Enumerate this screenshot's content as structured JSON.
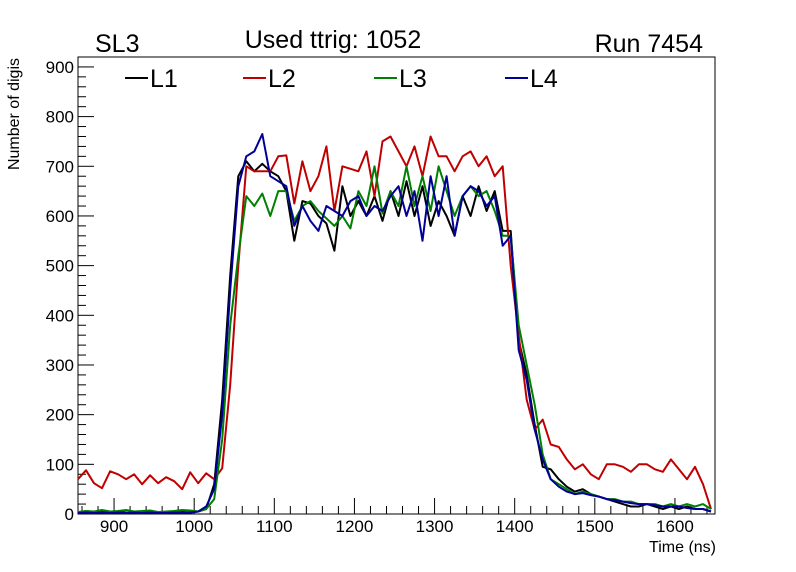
{
  "header": {
    "left": "SL3",
    "center": "Used ttrig: 1052",
    "right": "Run 7454"
  },
  "chart_data": {
    "type": "line",
    "xlabel": "Time (ns)",
    "ylabel": "Number of digis",
    "xlim": [
      855,
      1650
    ],
    "ylim": [
      0,
      920
    ],
    "xticks": [
      900,
      1000,
      1100,
      1200,
      1300,
      1400,
      1500,
      1600
    ],
    "yticks": [
      0,
      100,
      200,
      300,
      400,
      500,
      600,
      700,
      800,
      900
    ],
    "grid": false,
    "legend_position": "top",
    "x": [
      855,
      865,
      875,
      885,
      895,
      905,
      915,
      925,
      935,
      945,
      955,
      965,
      975,
      985,
      995,
      1005,
      1015,
      1025,
      1035,
      1045,
      1055,
      1065,
      1075,
      1085,
      1095,
      1105,
      1115,
      1125,
      1135,
      1145,
      1155,
      1165,
      1175,
      1185,
      1195,
      1205,
      1215,
      1225,
      1235,
      1245,
      1255,
      1265,
      1275,
      1285,
      1295,
      1305,
      1315,
      1325,
      1335,
      1345,
      1355,
      1365,
      1375,
      1385,
      1395,
      1405,
      1415,
      1425,
      1435,
      1445,
      1455,
      1465,
      1475,
      1485,
      1495,
      1505,
      1515,
      1525,
      1535,
      1545,
      1555,
      1565,
      1575,
      1585,
      1595,
      1605,
      1615,
      1625,
      1635,
      1645
    ],
    "series": [
      {
        "name": "L1",
        "color": "#000000",
        "values": [
          2,
          3,
          2,
          4,
          3,
          5,
          3,
          2,
          4,
          3,
          2,
          3,
          2,
          4,
          3,
          5,
          10,
          60,
          230,
          480,
          680,
          710,
          690,
          705,
          690,
          680,
          650,
          550,
          630,
          625,
          600,
          585,
          530,
          660,
          600,
          630,
          600,
          640,
          590,
          650,
          600,
          670,
          600,
          660,
          580,
          630,
          600,
          560,
          640,
          600,
          660,
          610,
          650,
          570,
          570,
          350,
          280,
          180,
          95,
          90,
          70,
          55,
          45,
          50,
          40,
          35,
          30,
          25,
          20,
          15,
          15,
          20,
          15,
          10,
          15,
          10,
          15,
          10,
          10,
          5
        ]
      },
      {
        "name": "L2",
        "color": "#c00000",
        "values": [
          70,
          88,
          62,
          52,
          86,
          80,
          70,
          80,
          60,
          78,
          62,
          74,
          66,
          50,
          84,
          62,
          82,
          70,
          92,
          260,
          500,
          700,
          690,
          690,
          690,
          720,
          722,
          625,
          710,
          650,
          680,
          740,
          610,
          700,
          695,
          690,
          730,
          640,
          750,
          760,
          730,
          700,
          740,
          680,
          760,
          720,
          720,
          690,
          720,
          730,
          700,
          720,
          680,
          700,
          500,
          360,
          230,
          170,
          190,
          140,
          135,
          110,
          90,
          100,
          80,
          70,
          100,
          100,
          95,
          85,
          100,
          100,
          90,
          85,
          110,
          90,
          70,
          95,
          60,
          10
        ]
      },
      {
        "name": "L3",
        "color": "#008000",
        "values": [
          4,
          6,
          5,
          8,
          5,
          6,
          8,
          5,
          6,
          7,
          4,
          5,
          6,
          8,
          7,
          5,
          10,
          30,
          150,
          380,
          520,
          640,
          620,
          645,
          600,
          650,
          650,
          590,
          620,
          630,
          610,
          595,
          580,
          600,
          575,
          650,
          620,
          700,
          605,
          650,
          620,
          700,
          620,
          680,
          610,
          700,
          650,
          600,
          640,
          660,
          640,
          650,
          610,
          560,
          560,
          380,
          300,
          220,
          120,
          70,
          60,
          50,
          40,
          45,
          40,
          35,
          30,
          30,
          25,
          25,
          20,
          20,
          20,
          15,
          20,
          15,
          20,
          15,
          20,
          10
        ]
      },
      {
        "name": "L4",
        "color": "#000099",
        "values": [
          2,
          3,
          2,
          3,
          2,
          3,
          2,
          3,
          2,
          3,
          2,
          2,
          3,
          2,
          3,
          5,
          15,
          50,
          200,
          450,
          660,
          720,
          730,
          765,
          680,
          670,
          660,
          580,
          620,
          590,
          570,
          620,
          610,
          600,
          630,
          640,
          600,
          620,
          610,
          640,
          660,
          600,
          650,
          550,
          680,
          600,
          680,
          560,
          640,
          660,
          650,
          620,
          640,
          540,
          560,
          330,
          270,
          170,
          110,
          70,
          55,
          45,
          40,
          42,
          38,
          35,
          30,
          28,
          25,
          22,
          20,
          20,
          18,
          15,
          15,
          15,
          12,
          10,
          10,
          5
        ]
      }
    ]
  }
}
